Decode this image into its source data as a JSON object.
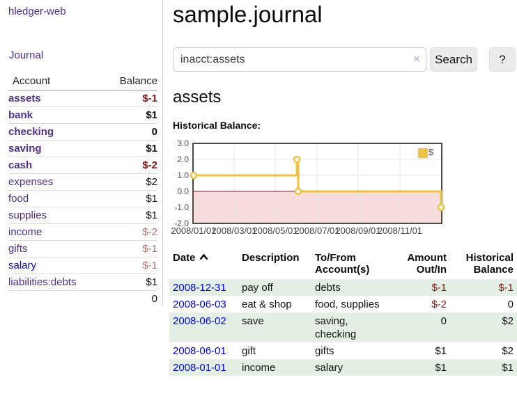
{
  "sidebar": {
    "brand": "hledger-web",
    "nav_journal": "Journal",
    "accounts": {
      "header_account": "Account",
      "header_balance": "Balance",
      "rows": [
        {
          "name": "assets",
          "balance": "$-1",
          "depth": 1,
          "bold": true,
          "balance_style": "strong-neg"
        },
        {
          "name": "bank",
          "balance": "$1",
          "depth": 2,
          "bold": true
        },
        {
          "name": "checking",
          "balance": "0",
          "depth": 3,
          "bold": true
        },
        {
          "name": "saving",
          "balance": "$1",
          "depth": 3,
          "bold": true
        },
        {
          "name": "cash",
          "balance": "$-2",
          "depth": 2,
          "bold": true,
          "balance_style": "strong-neg"
        },
        {
          "name": "expenses",
          "balance": "$2",
          "depth": 1
        },
        {
          "name": "food",
          "balance": "$1",
          "depth": 2
        },
        {
          "name": "supplies",
          "balance": "$1",
          "depth": 2
        },
        {
          "name": "income",
          "balance": "$-2",
          "depth": 1,
          "balance_style": "soft-neg"
        },
        {
          "name": "gifts",
          "balance": "$-1",
          "depth": 2,
          "balance_style": "soft-neg"
        },
        {
          "name": "salary",
          "balance": "$-1",
          "depth": 2,
          "balance_style": "soft-neg",
          "name_style": "blue"
        },
        {
          "name": "liabilities:debts",
          "balance": "$1",
          "depth": 1
        }
      ],
      "total": "0"
    }
  },
  "main": {
    "title": "sample.journal",
    "search": {
      "value": "inacct:assets",
      "clear_icon": "×",
      "button_label": "Search",
      "help_label": "?"
    },
    "account_heading": "assets",
    "section_label": "Historical Balance:"
  },
  "chart_data": {
    "type": "line",
    "title": "Historical Balance",
    "step": true,
    "series": [
      {
        "name": "$",
        "color": "#EDC240",
        "points": [
          [
            "2008-01-01",
            1
          ],
          [
            "2008-06-01",
            2
          ],
          [
            "2008-06-02",
            2
          ],
          [
            "2008-06-03",
            0
          ],
          [
            "2008-12-31",
            -1
          ]
        ]
      }
    ],
    "ylim": [
      -2.0,
      3.0
    ],
    "yticks": [
      "3.0",
      "2.0",
      "1.0",
      "0.0",
      "-1.0",
      "-2.0"
    ],
    "xticks": [
      "2008/01/01",
      "2008/03/01",
      "2008/05/01",
      "2008/07/01",
      "2008/09/01",
      "2008/11/01"
    ],
    "legend_position": "top-right",
    "grid": true,
    "negative_region_color": "#f9dcdc",
    "zero_line_color": "#8b1a1a",
    "border_color": "#4a4a4a"
  },
  "register": {
    "headers": {
      "date": "Date",
      "description": "Description",
      "accounts": "To/From Account(s)",
      "amount": "Amount Out/In",
      "balance": "Historical Balance"
    },
    "sort": {
      "column": "date",
      "direction": "ascending"
    },
    "rows": [
      {
        "date": "2008-12-31",
        "description": "pay off",
        "accounts": "debts",
        "amount": "$-1",
        "balance": "$-1",
        "amount_negative": true,
        "balance_negative": true
      },
      {
        "date": "2008-06-03",
        "description": "eat & shop",
        "accounts": "food, supplies",
        "amount": "$-2",
        "balance": "0",
        "amount_negative": true,
        "balance_negative": false
      },
      {
        "date": "2008-06-02",
        "description": "save",
        "accounts": "saving, checking",
        "amount": "0",
        "balance": "$2",
        "amount_negative": false,
        "balance_negative": false
      },
      {
        "date": "2008-06-01",
        "description": "gift",
        "accounts": "gifts",
        "amount": "$1",
        "balance": "$2",
        "amount_negative": false,
        "balance_negative": false
      },
      {
        "date": "2008-01-01",
        "description": "income",
        "accounts": "salary",
        "amount": "$1",
        "balance": "$1",
        "amount_negative": false,
        "balance_negative": false
      }
    ]
  },
  "colors": {
    "link_purple": "#502d90",
    "link_blue": "#0000ee",
    "negative_strong": "#871411",
    "negative_soft": "#b5716b",
    "row_highlight_green": "#e2efe2",
    "series_yellow": "#EDC240"
  }
}
